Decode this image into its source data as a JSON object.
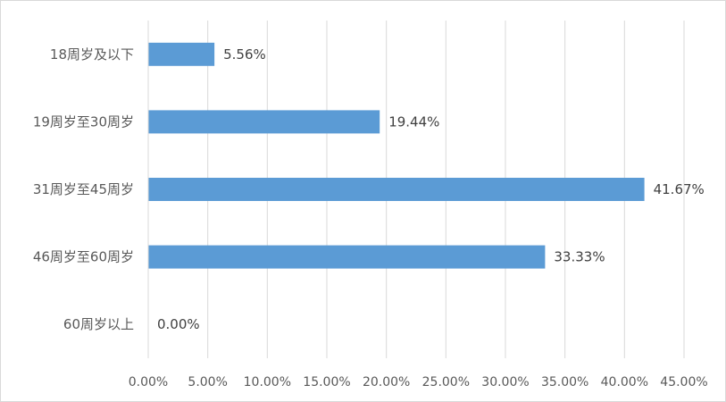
{
  "chart_data": {
    "type": "bar",
    "orientation": "horizontal",
    "categories": [
      "18周岁及以下",
      "19周岁至30周岁",
      "31周岁至45周岁",
      "46周岁至60周岁",
      "60周岁以上"
    ],
    "values": [
      5.56,
      19.44,
      41.67,
      33.33,
      0.0
    ],
    "value_labels": [
      "5.56%",
      "19.44%",
      "41.67%",
      "33.33%",
      "0.00%"
    ],
    "x_ticks": [
      "0.00%",
      "5.00%",
      "10.00%",
      "15.00%",
      "20.00%",
      "25.00%",
      "30.00%",
      "35.00%",
      "40.00%",
      "45.00%"
    ],
    "xlim": [
      0,
      45
    ],
    "x_tick_step": 5,
    "grid": "vertical",
    "legend": "none",
    "bar_color": "#5b9bd5",
    "grid_color": "#d9d9d9",
    "title": "",
    "xlabel": "",
    "ylabel": ""
  }
}
